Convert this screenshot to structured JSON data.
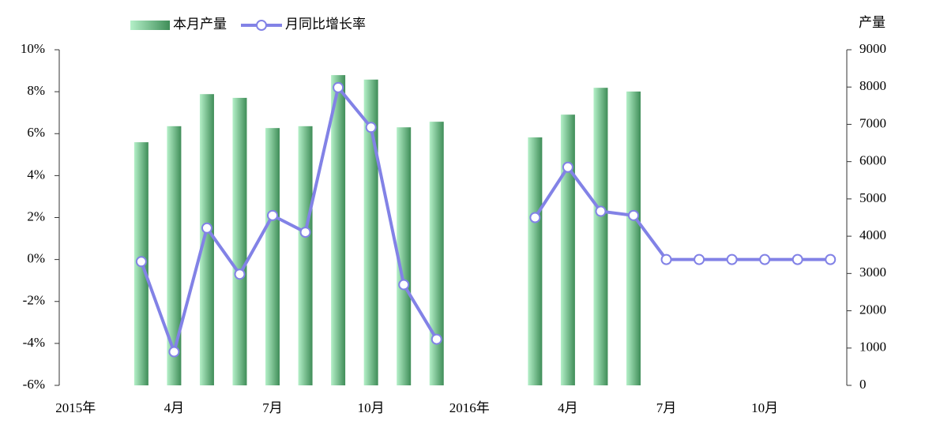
{
  "chart_data": {
    "type": "bar-line",
    "categories": [
      "2015年",
      null,
      null,
      "4月",
      null,
      null,
      "7月",
      null,
      null,
      "10月",
      null,
      null,
      "2016年",
      null,
      null,
      "4月",
      null,
      null,
      "7月",
      null,
      null,
      "10月",
      null,
      null
    ],
    "series": [
      {
        "name": "本月产量",
        "type": "bar",
        "axis": "y2",
        "color": "#3f8d58",
        "values": [
          null,
          null,
          6520,
          6950,
          7810,
          7710,
          6900,
          6950,
          8320,
          8200,
          6920,
          7070,
          null,
          null,
          6650,
          7260,
          7980,
          7880,
          null,
          null,
          null,
          null,
          null,
          null
        ]
      },
      {
        "name": "月同比增长率",
        "type": "line",
        "axis": "y",
        "color": "#8282e6",
        "values": [
          null,
          null,
          -0.1,
          -4.4,
          1.5,
          -0.7,
          2.1,
          1.3,
          8.2,
          6.3,
          -1.2,
          -3.8,
          null,
          null,
          2.0,
          4.4,
          2.3,
          2.1,
          0.0,
          0.0,
          0.0,
          0.0,
          0.0,
          0.0
        ]
      }
    ],
    "ylim": [
      -6,
      10
    ],
    "yticks": [
      {
        "value": -6,
        "label": "-6%"
      },
      {
        "value": -4,
        "label": "-4%"
      },
      {
        "value": -2,
        "label": "-2%"
      },
      {
        "value": 0,
        "label": "0%"
      },
      {
        "value": 2,
        "label": "2%"
      },
      {
        "value": 4,
        "label": "4%"
      },
      {
        "value": 6,
        "label": "6%"
      },
      {
        "value": 8,
        "label": "8%"
      },
      {
        "value": 10,
        "label": "10%"
      }
    ],
    "y2label": "产量",
    "y2lim": [
      0,
      9000
    ],
    "y2ticks": [
      0,
      1000,
      2000,
      3000,
      4000,
      5000,
      6000,
      7000,
      8000,
      9000
    ],
    "grid": false,
    "legend": "top"
  }
}
